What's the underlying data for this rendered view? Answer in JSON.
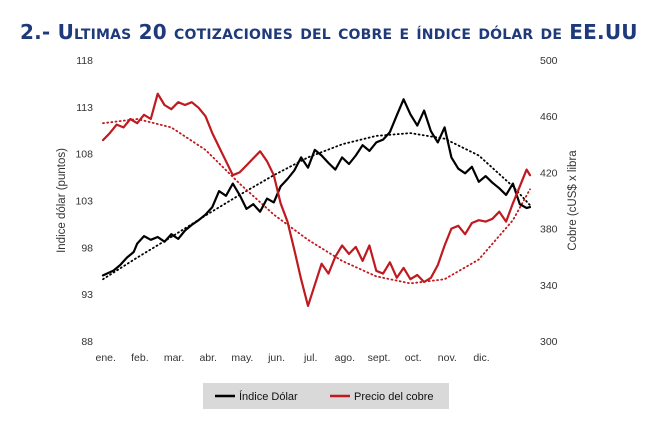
{
  "title": "2.- Ultimas 20 cotizaciones del cobre e índice dólar de EE.UU",
  "chart_data": {
    "type": "line",
    "x_categories": [
      "ene.",
      "feb.",
      "mar.",
      "abr.",
      "may.",
      "jun.",
      "jul.",
      "ago.",
      "sept.",
      "oct.",
      "nov.",
      "dic."
    ],
    "y_left": {
      "label": "Indice dólar (puntos)",
      "range": [
        88,
        118
      ],
      "ticks": [
        88,
        93,
        98,
        103,
        108,
        113,
        118
      ]
    },
    "y_right": {
      "label": "Cobre (cUS$ x libra",
      "range": [
        300,
        500
      ],
      "ticks": [
        300,
        340,
        380,
        420,
        460,
        500
      ]
    },
    "grid": false,
    "legend_position": "bottom",
    "series": [
      {
        "name": "Índice Dólar",
        "axis": "left",
        "color": "#000000",
        "points": [
          [
            0.0,
            95.0
          ],
          [
            0.3,
            95.5
          ],
          [
            0.5,
            96.1
          ],
          [
            0.7,
            96.9
          ],
          [
            0.9,
            97.5
          ],
          [
            1.0,
            98.4
          ],
          [
            1.2,
            99.2
          ],
          [
            1.4,
            98.8
          ],
          [
            1.6,
            99.1
          ],
          [
            1.8,
            98.6
          ],
          [
            2.0,
            99.4
          ],
          [
            2.2,
            98.9
          ],
          [
            2.4,
            99.8
          ],
          [
            2.6,
            100.4
          ],
          [
            2.8,
            100.9
          ],
          [
            3.0,
            101.5
          ],
          [
            3.2,
            102.3
          ],
          [
            3.4,
            104.0
          ],
          [
            3.6,
            103.5
          ],
          [
            3.8,
            104.8
          ],
          [
            4.0,
            103.6
          ],
          [
            4.2,
            102.1
          ],
          [
            4.4,
            102.6
          ],
          [
            4.6,
            101.8
          ],
          [
            4.8,
            103.2
          ],
          [
            5.0,
            102.8
          ],
          [
            5.2,
            104.5
          ],
          [
            5.4,
            105.3
          ],
          [
            5.6,
            106.2
          ],
          [
            5.8,
            107.6
          ],
          [
            6.0,
            106.5
          ],
          [
            6.2,
            108.4
          ],
          [
            6.4,
            107.8
          ],
          [
            6.6,
            107.0
          ],
          [
            6.8,
            106.3
          ],
          [
            7.0,
            107.6
          ],
          [
            7.2,
            106.9
          ],
          [
            7.4,
            107.8
          ],
          [
            7.6,
            108.9
          ],
          [
            7.8,
            108.3
          ],
          [
            8.0,
            109.2
          ],
          [
            8.2,
            109.5
          ],
          [
            8.4,
            110.3
          ],
          [
            8.6,
            112.1
          ],
          [
            8.8,
            113.8
          ],
          [
            9.0,
            112.2
          ],
          [
            9.2,
            111.0
          ],
          [
            9.4,
            112.6
          ],
          [
            9.6,
            110.4
          ],
          [
            9.8,
            109.2
          ],
          [
            10.0,
            110.8
          ],
          [
            10.2,
            107.6
          ],
          [
            10.4,
            106.4
          ],
          [
            10.6,
            105.9
          ],
          [
            10.8,
            106.6
          ],
          [
            11.0,
            105.0
          ],
          [
            11.2,
            105.6
          ],
          [
            11.4,
            104.9
          ],
          [
            11.6,
            104.3
          ],
          [
            11.8,
            103.6
          ],
          [
            12.0,
            104.8
          ],
          [
            12.2,
            102.6
          ],
          [
            12.4,
            102.2
          ],
          [
            12.5,
            102.3
          ]
        ]
      },
      {
        "name": "Precio del cobre",
        "axis": "right",
        "color": "#c0191f",
        "points": [
          [
            0.0,
            443
          ],
          [
            0.2,
            448
          ],
          [
            0.4,
            454
          ],
          [
            0.6,
            452
          ],
          [
            0.8,
            458
          ],
          [
            1.0,
            455
          ],
          [
            1.2,
            461
          ],
          [
            1.4,
            458
          ],
          [
            1.6,
            476
          ],
          [
            1.8,
            468
          ],
          [
            2.0,
            465
          ],
          [
            2.2,
            470
          ],
          [
            2.4,
            468
          ],
          [
            2.6,
            470
          ],
          [
            2.8,
            466
          ],
          [
            3.0,
            460
          ],
          [
            3.2,
            448
          ],
          [
            3.4,
            438
          ],
          [
            3.6,
            428
          ],
          [
            3.8,
            418
          ],
          [
            4.0,
            420
          ],
          [
            4.2,
            425
          ],
          [
            4.4,
            430
          ],
          [
            4.6,
            435
          ],
          [
            4.8,
            428
          ],
          [
            5.0,
            418
          ],
          [
            5.2,
            398
          ],
          [
            5.4,
            385
          ],
          [
            5.6,
            365
          ],
          [
            5.8,
            344
          ],
          [
            6.0,
            325
          ],
          [
            6.2,
            340
          ],
          [
            6.4,
            355
          ],
          [
            6.6,
            348
          ],
          [
            6.8,
            360
          ],
          [
            7.0,
            368
          ],
          [
            7.2,
            362
          ],
          [
            7.4,
            367
          ],
          [
            7.6,
            357
          ],
          [
            7.8,
            368
          ],
          [
            8.0,
            350
          ],
          [
            8.2,
            348
          ],
          [
            8.4,
            356
          ],
          [
            8.6,
            345
          ],
          [
            8.8,
            352
          ],
          [
            9.0,
            344
          ],
          [
            9.2,
            347
          ],
          [
            9.4,
            342
          ],
          [
            9.6,
            345
          ],
          [
            9.8,
            354
          ],
          [
            10.0,
            368
          ],
          [
            10.2,
            380
          ],
          [
            10.4,
            382
          ],
          [
            10.6,
            376
          ],
          [
            10.8,
            384
          ],
          [
            11.0,
            386
          ],
          [
            11.2,
            385
          ],
          [
            11.4,
            387
          ],
          [
            11.6,
            392
          ],
          [
            11.8,
            385
          ],
          [
            12.0,
            398
          ],
          [
            12.2,
            410
          ],
          [
            12.4,
            422
          ],
          [
            12.5,
            418
          ]
        ]
      },
      {
        "name": "Índice Dólar trend",
        "axis": "left",
        "color": "#000000",
        "dotted": true,
        "points": [
          [
            0.0,
            94.6
          ],
          [
            1.0,
            96.9
          ],
          [
            2.0,
            99.1
          ],
          [
            3.0,
            101.4
          ],
          [
            4.0,
            103.6
          ],
          [
            5.0,
            105.7
          ],
          [
            6.0,
            107.6
          ],
          [
            7.0,
            109.0
          ],
          [
            8.0,
            109.9
          ],
          [
            9.0,
            110.2
          ],
          [
            10.0,
            109.6
          ],
          [
            11.0,
            107.8
          ],
          [
            12.0,
            104.5
          ],
          [
            12.5,
            102.5
          ]
        ]
      },
      {
        "name": "Precio del cobre trend",
        "axis": "right",
        "color": "#c0191f",
        "dotted": true,
        "points": [
          [
            0.0,
            455
          ],
          [
            1.0,
            458
          ],
          [
            2.0,
            452
          ],
          [
            3.0,
            436
          ],
          [
            4.0,
            412
          ],
          [
            5.0,
            390
          ],
          [
            6.0,
            372
          ],
          [
            7.0,
            357
          ],
          [
            8.0,
            346
          ],
          [
            9.0,
            341
          ],
          [
            10.0,
            344
          ],
          [
            11.0,
            358
          ],
          [
            12.0,
            386
          ],
          [
            12.5,
            408
          ]
        ]
      }
    ]
  },
  "legend": [
    {
      "label": "Índice Dólar",
      "color": "#000000"
    },
    {
      "label": "Precio del cobre",
      "color": "#c0191f"
    }
  ]
}
